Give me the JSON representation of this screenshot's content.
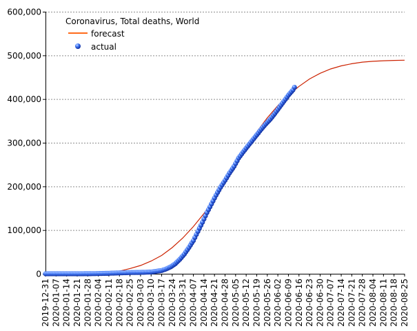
{
  "chart_data": {
    "type": "line",
    "title": "Coronavirus, Total deaths, World",
    "xlabel": "",
    "ylabel": "",
    "ylim": [
      0,
      600000
    ],
    "yticks": [
      0,
      100000,
      200000,
      300000,
      400000,
      500000,
      600000
    ],
    "ytick_labels": [
      "0",
      "100,000",
      "200,000",
      "300,000",
      "400,000",
      "500,000",
      "600,000"
    ],
    "x_start": "2019-12-31",
    "x_end": "2020-08-25",
    "xtick_labels": [
      "2019-12-31",
      "2020-01-07",
      "2020-01-14",
      "2020-01-21",
      "2020-01-28",
      "2020-02-04",
      "2020-02-11",
      "2020-02-18",
      "2020-02-25",
      "2020-03-03",
      "2020-03-10",
      "2020-03-17",
      "2020-03-24",
      "2020-03-31",
      "2020-04-07",
      "2020-04-14",
      "2020-04-21",
      "2020-04-28",
      "2020-05-05",
      "2020-05-12",
      "2020-05-19",
      "2020-05-26",
      "2020-06-02",
      "2020-06-09",
      "2020-06-16",
      "2020-06-23",
      "2020-06-30",
      "2020-07-07",
      "2020-07-14",
      "2020-07-21",
      "2020-07-28",
      "2020-08-04",
      "2020-08-11",
      "2020-08-18",
      "2020-08-25"
    ],
    "grid": true,
    "legend_position": "top-left",
    "colors": {
      "forecast": "#cc2200",
      "forecast_legend": "#ff6a1a",
      "actual": "#1f4fd1"
    },
    "series": [
      {
        "name": "forecast",
        "kind": "line",
        "points": [
          [
            "2019-12-31",
            0
          ],
          [
            "2020-02-04",
            0
          ],
          [
            "2020-02-11",
            2000
          ],
          [
            "2020-02-18",
            6000
          ],
          [
            "2020-02-25",
            12000
          ],
          [
            "2020-03-03",
            19000
          ],
          [
            "2020-03-10",
            29000
          ],
          [
            "2020-03-17",
            42000
          ],
          [
            "2020-03-24",
            60000
          ],
          [
            "2020-03-31",
            82000
          ],
          [
            "2020-04-07",
            108000
          ],
          [
            "2020-04-14",
            138000
          ],
          [
            "2020-04-21",
            172000
          ],
          [
            "2020-04-28",
            210000
          ],
          [
            "2020-05-05",
            250000
          ],
          [
            "2020-05-12",
            290000
          ],
          [
            "2020-05-19",
            325000
          ],
          [
            "2020-05-26",
            357000
          ],
          [
            "2020-06-02",
            385000
          ],
          [
            "2020-06-09",
            409000
          ],
          [
            "2020-06-16",
            429000
          ],
          [
            "2020-06-23",
            446000
          ],
          [
            "2020-06-30",
            459000
          ],
          [
            "2020-07-07",
            469000
          ],
          [
            "2020-07-14",
            476000
          ],
          [
            "2020-07-21",
            481000
          ],
          [
            "2020-07-28",
            484500
          ],
          [
            "2020-08-04",
            486500
          ],
          [
            "2020-08-11",
            487800
          ],
          [
            "2020-08-18",
            488600
          ],
          [
            "2020-08-25",
            489000
          ]
        ]
      },
      {
        "name": "actual",
        "kind": "scatter",
        "points": [
          [
            "2019-12-31",
            0
          ],
          [
            "2020-01-07",
            0
          ],
          [
            "2020-01-14",
            1
          ],
          [
            "2020-01-21",
            6
          ],
          [
            "2020-01-28",
            132
          ],
          [
            "2020-02-04",
            490
          ],
          [
            "2020-02-11",
            1113
          ],
          [
            "2020-02-18",
            2004
          ],
          [
            "2020-02-25",
            2708
          ],
          [
            "2020-03-03",
            3112
          ],
          [
            "2020-03-10",
            4012
          ],
          [
            "2020-03-13",
            5400
          ],
          [
            "2020-03-17",
            7500
          ],
          [
            "2020-03-20",
            11000
          ],
          [
            "2020-03-23",
            16000
          ],
          [
            "2020-03-26",
            23000
          ],
          [
            "2020-03-29",
            33000
          ],
          [
            "2020-04-01",
            45000
          ],
          [
            "2020-04-04",
            60000
          ],
          [
            "2020-04-07",
            76000
          ],
          [
            "2020-04-10",
            97000
          ],
          [
            "2020-04-13",
            118000
          ],
          [
            "2020-04-16",
            140000
          ],
          [
            "2020-04-19",
            160000
          ],
          [
            "2020-04-22",
            180000
          ],
          [
            "2020-04-25",
            198000
          ],
          [
            "2020-04-28",
            214000
          ],
          [
            "2020-05-01",
            231000
          ],
          [
            "2020-05-04",
            246000
          ],
          [
            "2020-05-07",
            265000
          ],
          [
            "2020-05-10",
            279000
          ],
          [
            "2020-05-13",
            292000
          ],
          [
            "2020-05-16",
            305000
          ],
          [
            "2020-05-19",
            318000
          ],
          [
            "2020-05-22",
            331000
          ],
          [
            "2020-05-25",
            343000
          ],
          [
            "2020-05-28",
            354000
          ],
          [
            "2020-05-31",
            367000
          ],
          [
            "2020-06-03",
            381000
          ],
          [
            "2020-06-06",
            395000
          ],
          [
            "2020-06-09",
            409000
          ],
          [
            "2020-06-12",
            421000
          ],
          [
            "2020-06-13",
            427000
          ]
        ]
      }
    ]
  }
}
